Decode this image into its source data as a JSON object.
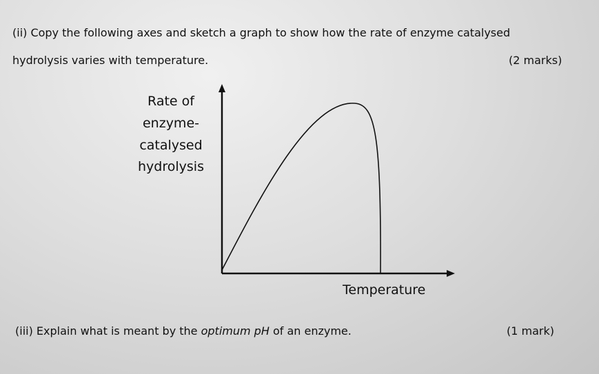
{
  "question_ii": {
    "text_lines": [
      "(ii) Copy the following axes and sketch a graph to show how the rate of enzyme catalysed",
      "hydrolysis varies with temperature."
    ],
    "marks": "(2 marks)"
  },
  "graph": {
    "y_axis_label_lines": [
      "Rate of",
      "enzyme-",
      "catalysed",
      "hydrolysis"
    ],
    "x_axis_label": "Temperature"
  },
  "question_iii": {
    "text_parts": [
      "(iii) Explain what is meant by the ",
      "optimum pH",
      " of an enzyme."
    ],
    "marks": "(1 mark)"
  }
}
